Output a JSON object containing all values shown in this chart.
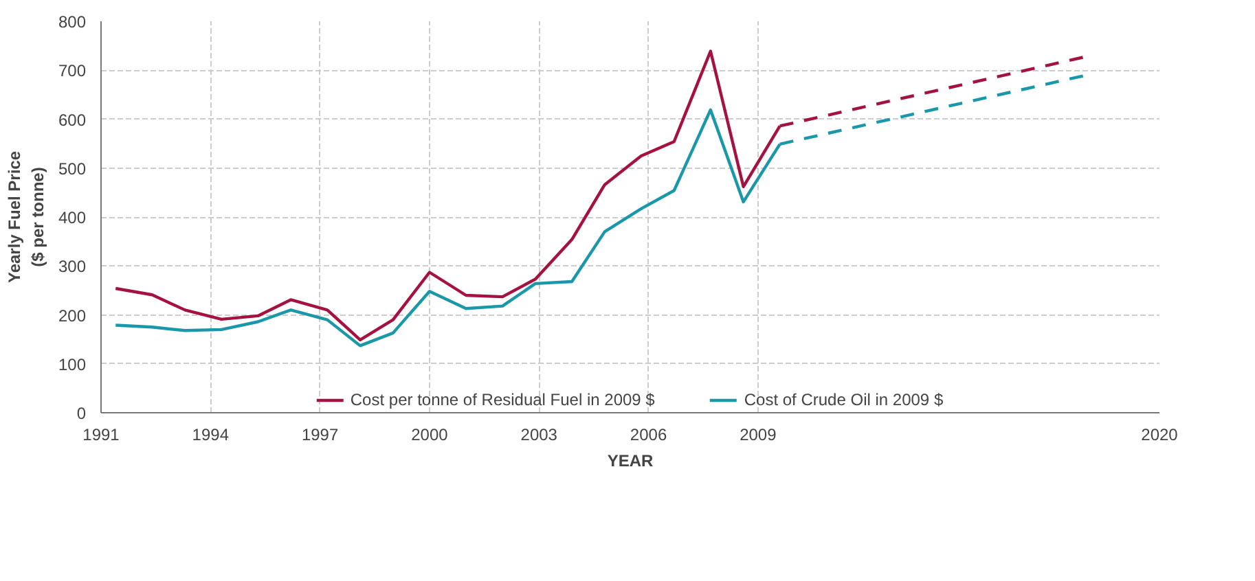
{
  "chart_data": {
    "type": "line",
    "xlabel": "YEAR",
    "ylabel": "Yearly Fuel Price\n($ per tonne)",
    "xlim": [
      1991,
      2020
    ],
    "xticks": [
      1991,
      1994,
      1997,
      2000,
      2003,
      2006,
      2009,
      2020
    ],
    "ylim": [
      0,
      800
    ],
    "yticks": [
      0,
      100,
      200,
      300,
      400,
      500,
      600,
      700,
      800
    ],
    "grid": true,
    "legend": "bottom",
    "line_style": "solid",
    "series": [
      {
        "name": "Cost per tonne of Residual Fuel in 2009 $",
        "color": "#a5123f",
        "x": [
          1991.4,
          1992.4,
          1993.3,
          1994.3,
          1995.3,
          1996.2,
          1997.2,
          1998.1,
          1999.0,
          2000.0,
          2001.0,
          2002.0,
          2002.9,
          2003.9,
          2004.8,
          2005.8,
          2006.7,
          2007.7,
          2008.6,
          2009.6
        ],
        "values": [
          254,
          241,
          210,
          191,
          198,
          231,
          210,
          149,
          190,
          287,
          240,
          237,
          273,
          354,
          466,
          525,
          554,
          739,
          462,
          586
        ]
      },
      {
        "name": "Cost of Crude Oil in 2009 $",
        "color": "#1a97a8",
        "x": [
          1991.4,
          1992.4,
          1993.3,
          1994.3,
          1995.3,
          1996.2,
          1997.2,
          1998.1,
          1999.0,
          2000.0,
          2001.0,
          2002.0,
          2002.9,
          2003.9,
          2004.8,
          2005.8,
          2006.7,
          2007.7,
          2008.6,
          2009.6
        ],
        "values": [
          179,
          175,
          168,
          170,
          186,
          210,
          190,
          137,
          163,
          248,
          213,
          218,
          264,
          268,
          370,
          417,
          454,
          619,
          431,
          549
        ]
      },
      {
        "color": "#a5123f",
        "line_style": "dashed",
        "x": [
          2009.6,
          2018
        ],
        "values": [
          586,
          728
        ]
      },
      {
        "color": "#1a97a8",
        "line_style": "dashed",
        "x": [
          2009.6,
          2018
        ],
        "values": [
          549,
          690
        ]
      }
    ]
  }
}
